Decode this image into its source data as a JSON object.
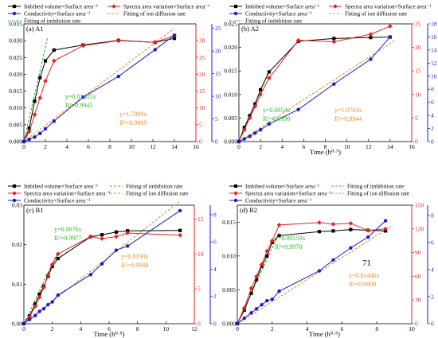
{
  "chart_data": [
    {
      "type": "line",
      "panel_label": "(a) A1",
      "xlabel": "",
      "xlim": [
        0,
        16
      ],
      "xticks": [
        "0",
        "2",
        "4",
        "6",
        "8",
        "10",
        "12",
        "14",
        "16"
      ],
      "ylim_left": [
        0,
        0.035
      ],
      "yticks_left": [
        "0.000",
        "0.005",
        "0.010",
        "0.015",
        "0.020",
        "0.025",
        "0.030",
        "0.035"
      ],
      "ylim_right_red": [
        0,
        35
      ],
      "yticks_right_red": [
        "0",
        "5",
        "10",
        "15",
        "20",
        "25",
        "30"
      ],
      "ylim_right_blue": [
        0,
        26
      ],
      "yticks_right_blue": [
        "0",
        "5",
        "10",
        "15",
        "20",
        "25"
      ],
      "legend": [
        "Imbibed volume×Surface area⁻¹",
        "Spectra area variation×Surface area⁻¹",
        "Conductivity×Surface area⁻¹",
        "Fitting of imbibition rate",
        "Fitting of ion diffusion rate"
      ],
      "series": [
        {
          "name": "Imbibed volume×Surface area⁻¹",
          "axis": "left",
          "color": "#000000",
          "marker": "square",
          "x": [
            0,
            0.5,
            1,
            1.5,
            2,
            2.8,
            5.5,
            8.8,
            12.2,
            14
          ],
          "y": [
            0,
            0.004,
            0.012,
            0.019,
            0.024,
            0.0272,
            0.0287,
            0.0301,
            0.0295,
            0.0307
          ]
        },
        {
          "name": "Spectra area variation×Surface area⁻¹",
          "axis": "red",
          "color": "#e8211e",
          "marker": "diamond",
          "x": [
            0,
            0.5,
            1,
            1.5,
            2,
            2.8,
            5.5,
            8.8,
            12.2,
            14
          ],
          "y": [
            0,
            3,
            8,
            13,
            18,
            24,
            28.5,
            30,
            29.5,
            31.5
          ]
        },
        {
          "name": "Conductivity×Surface area⁻¹",
          "axis": "blue",
          "color": "#1a1ad6",
          "marker": "circle",
          "x": [
            0,
            0.5,
            1,
            1.5,
            2,
            2.8,
            5.5,
            8.8,
            12.2,
            14
          ],
          "y": [
            0,
            0.5,
            1,
            1.8,
            2.8,
            4.5,
            9.8,
            14.4,
            20.3,
            23.5
          ]
        }
      ],
      "fits": [
        {
          "name": "Fitting of imbibition rate",
          "axis": "left",
          "color": "#2dbb2d",
          "slope": 0.01405,
          "x_end": 2.2
        },
        {
          "name": "Fitting of ion diffusion rate",
          "axis": "blue",
          "color": "#f08c2a",
          "slope": 1.7889,
          "x_end": 14
        }
      ],
      "annotations": [
        {
          "text": "y=0.01405x",
          "color": "#2dbb2d"
        },
        {
          "text": "R²=0.9945",
          "color": "#2dbb2d"
        },
        {
          "text": "y=1.7889x",
          "color": "#f08c2a"
        },
        {
          "text": "R²=0.9969",
          "color": "#f08c2a"
        }
      ]
    },
    {
      "type": "line",
      "panel_label": "(b) A2",
      "xlabel": "Time (h⁰·⁵)",
      "xlim": [
        0,
        16
      ],
      "xticks": [
        "0",
        "2",
        "4",
        "6",
        "8",
        "10",
        "12",
        "14",
        "16"
      ],
      "ylim_left": [
        0,
        0.025
      ],
      "yticks_left": [
        "0.000",
        "0.005",
        "0.010",
        "0.015",
        "0.020",
        "0.025"
      ],
      "ylim_right_red": [
        0,
        25
      ],
      "yticks_right_red": [
        "0",
        "5",
        "10",
        "15",
        "20",
        "25"
      ],
      "ylim_right_blue": [
        0,
        18
      ],
      "yticks_right_blue": [
        "0",
        "2",
        "4",
        "6",
        "8",
        "10",
        "12",
        "14",
        "16",
        "18"
      ],
      "legend": [
        "Imbibed volume×Surface area⁻¹",
        "Spectra area variation×Surface area⁻¹",
        "Conductivity×Surface area⁻¹",
        "Fitting of imbibition rate",
        "Fitting of ion diffusion rate"
      ],
      "series": [
        {
          "name": "Imbibed volume×Surface area⁻¹",
          "axis": "left",
          "color": "#000000",
          "marker": "square",
          "x": [
            0,
            0.5,
            1,
            1.5,
            2,
            2.8,
            5.5,
            8.8,
            12.2,
            14
          ],
          "y": [
            0,
            0.003,
            0.0055,
            0.008,
            0.011,
            0.0148,
            0.0213,
            0.0219,
            0.0221,
            0.0222
          ]
        },
        {
          "name": "Spectra area variation×Surface area⁻¹",
          "axis": "red",
          "color": "#e8211e",
          "marker": "diamond",
          "x": [
            0,
            0.5,
            1,
            1.5,
            2,
            2.8,
            5.5,
            8.8,
            12.2,
            14
          ],
          "y": [
            0,
            2.5,
            5,
            7.5,
            10,
            13.5,
            21.5,
            21.2,
            22.8,
            24.5
          ]
        },
        {
          "name": "Conductivity×Surface area⁻¹",
          "axis": "blue",
          "color": "#1a1ad6",
          "marker": "circle",
          "x": [
            0,
            0.5,
            1,
            1.5,
            2,
            2.8,
            5.5,
            8.8,
            12.2,
            14
          ],
          "y": [
            0,
            0.4,
            0.8,
            1.3,
            1.8,
            2.7,
            4.9,
            8.8,
            12.6,
            16
          ]
        }
      ],
      "fits": [
        {
          "name": "Fitting of imbibition rate",
          "axis": "left",
          "color": "#2dbb2d",
          "slope": 0.0054,
          "x_end": 2.8
        },
        {
          "name": "Fitting of ion diffusion rate",
          "axis": "blue",
          "color": "#f08c2a",
          "slope": 1.0703,
          "x_end": 14.5
        }
      ],
      "annotations": [
        {
          "text": "y=0.0054x",
          "color": "#2dbb2d"
        },
        {
          "text": "R²=0.9990",
          "color": "#2dbb2d"
        },
        {
          "text": "y=1.0703x",
          "color": "#f08c2a"
        },
        {
          "text": "R²=0.9944",
          "color": "#f08c2a"
        }
      ]
    },
    {
      "type": "line",
      "panel_label": "(c) B1",
      "xlabel": "Time (h⁰·⁵)",
      "xlim": [
        0,
        12
      ],
      "xticks": [
        "0",
        "2",
        "4",
        "6",
        "8",
        "10",
        "12"
      ],
      "ylim_left": [
        0,
        0.03
      ],
      "yticks_left": [
        "0.00",
        "0.01",
        "0.02",
        "0.03"
      ],
      "ylim_right_red": [
        0,
        17
      ],
      "yticks_right_red": [
        "0",
        "5",
        "10",
        "15"
      ],
      "ylim_right_blue": [
        0,
        8.7
      ],
      "yticks_right_blue": [
        "0",
        "2",
        "4",
        "6",
        "8"
      ],
      "legend": [
        "Imbibed volume×Surface area⁻¹",
        "Spectra area variation×Surface area⁻¹",
        "Conductivity×Surface area⁻¹",
        "Fitting of imbibition rate",
        "Fitting of ion diffusion rate"
      ],
      "series": [
        {
          "name": "Imbibed volume×Surface area⁻¹",
          "axis": "left",
          "color": "#000000",
          "marker": "square",
          "x": [
            0,
            0.4,
            0.8,
            1.1,
            1.4,
            1.7,
            2,
            2.4,
            4.7,
            5.5,
            6.5,
            7.3,
            11
          ],
          "y": [
            0,
            0.002,
            0.005,
            0.0075,
            0.0095,
            0.012,
            0.0145,
            0.0165,
            0.022,
            0.0225,
            0.0232,
            0.0235,
            0.0236
          ]
        },
        {
          "name": "Spectra area variation×Surface area⁻¹",
          "axis": "red",
          "color": "#e8211e",
          "marker": "diamond",
          "x": [
            0,
            0.4,
            0.8,
            1.1,
            1.4,
            1.7,
            2,
            2.4,
            4.7,
            5.5,
            6.5,
            7.3,
            11
          ],
          "y": [
            0,
            1,
            2.5,
            3.8,
            5.2,
            7,
            8.5,
            10,
            12.5,
            12.2,
            12.5,
            13,
            12.7
          ]
        },
        {
          "name": "Conductivity×Surface area⁻¹",
          "axis": "blue",
          "color": "#1a1ad6",
          "marker": "circle",
          "x": [
            0,
            0.4,
            0.8,
            1.1,
            1.4,
            1.7,
            2,
            2.4,
            4.7,
            5.5,
            6.5,
            7.3,
            11
          ],
          "y": [
            0,
            0.3,
            0.6,
            0.9,
            1.1,
            1.4,
            1.6,
            2.1,
            3.6,
            4.4,
            5.4,
            5.7,
            8.3
          ]
        }
      ],
      "fits": [
        {
          "name": "Fitting of imbibition rate",
          "axis": "left",
          "color": "#2dbb2d",
          "slope": 0.0076,
          "x_end": 2.4
        },
        {
          "name": "Fitting of ion diffusion rate",
          "axis": "blue",
          "color": "#f08c2a",
          "slope": 0.819,
          "x_end": 11
        }
      ],
      "annotations": [
        {
          "text": "y=0.0076x",
          "color": "#2dbb2d"
        },
        {
          "text": "R²=0.9977",
          "color": "#2dbb2d"
        },
        {
          "text": "y=0.8190x",
          "color": "#f08c2a"
        },
        {
          "text": "R²=0.9948",
          "color": "#f08c2a"
        }
      ]
    },
    {
      "type": "line",
      "panel_label": "(d) B2",
      "xlabel": "Time (h⁰·⁵)",
      "xlim": [
        0,
        10
      ],
      "xticks": [
        "0",
        "2",
        "4",
        "6",
        "8",
        "10"
      ],
      "ylim_left": [
        0,
        0.0175
      ],
      "yticks_left": [
        "0.000",
        "0.005",
        "0.010",
        "0.015"
      ],
      "ylim_right_red": [
        0,
        150
      ],
      "yticks_right_red": [
        "0",
        "30",
        "60",
        "90",
        "120",
        "150"
      ],
      "ylim_right_blue": [
        0,
        8.75
      ],
      "yticks_right_blue": [
        "0",
        "2",
        "4",
        "6",
        "8"
      ],
      "legend": [
        "Imbibed volume×Surface area⁻¹",
        "Spectra area variation×Surface area⁻¹",
        "Conductivity×Surface area⁻¹",
        "Fitting of imbibition rate",
        "Fitting of ion diffusion rate"
      ],
      "series": [
        {
          "name": "Imbibed volume×Surface area⁻¹",
          "axis": "left",
          "color": "#000000",
          "marker": "square",
          "x": [
            0,
            0.4,
            0.8,
            1.1,
            1.4,
            1.7,
            2,
            2.4,
            4.7,
            5.5,
            6.5,
            7.5,
            8.5
          ],
          "y": [
            0,
            0.002,
            0.0045,
            0.0065,
            0.0085,
            0.01,
            0.012,
            0.013,
            0.0136,
            0.0137,
            0.0139,
            0.0138,
            0.0137
          ]
        },
        {
          "name": "Spectra area variation×Surface area⁻¹",
          "axis": "red",
          "color": "#e8211e",
          "marker": "diamond",
          "x": [
            0,
            0.4,
            0.8,
            1.1,
            1.4,
            1.7,
            2,
            2.4,
            4.7,
            5.5,
            6.5,
            7.5,
            8.5
          ],
          "y": [
            0,
            20,
            45,
            60,
            75,
            92,
            105,
            125,
            128,
            126,
            127,
            118,
            120
          ]
        },
        {
          "name": "Conductivity×Surface area⁻¹",
          "axis": "blue",
          "color": "#1a1ad6",
          "marker": "circle",
          "x": [
            0,
            0.4,
            0.8,
            1.1,
            1.4,
            1.7,
            2,
            2.4,
            4.7,
            5.5,
            6.5,
            7.5,
            8.5
          ],
          "y": [
            0,
            0.4,
            0.8,
            1.1,
            1.4,
            1.7,
            1.8,
            2.4,
            3.9,
            4.7,
            5.6,
            6.4,
            7.6
          ]
        }
      ],
      "fits": [
        {
          "name": "Fitting of imbibition rate",
          "axis": "left",
          "color": "#2dbb2d",
          "slope": 0.00559,
          "x_end": 2.4
        },
        {
          "name": "Fitting of ion diffusion rate",
          "axis": "blue",
          "color": "#f08c2a",
          "slope": 0.81446,
          "x_end": 8.8
        }
      ],
      "annotations": [
        {
          "text": "y=0.00559x",
          "color": "#2dbb2d"
        },
        {
          "text": "R²=0.9978",
          "color": "#2dbb2d"
        },
        {
          "text": "y=0.81446x",
          "color": "#f08c2a"
        },
        {
          "text": "R²=0.9908",
          "color": "#f08c2a"
        },
        {
          "text": "71",
          "color": "#000000"
        }
      ]
    }
  ]
}
